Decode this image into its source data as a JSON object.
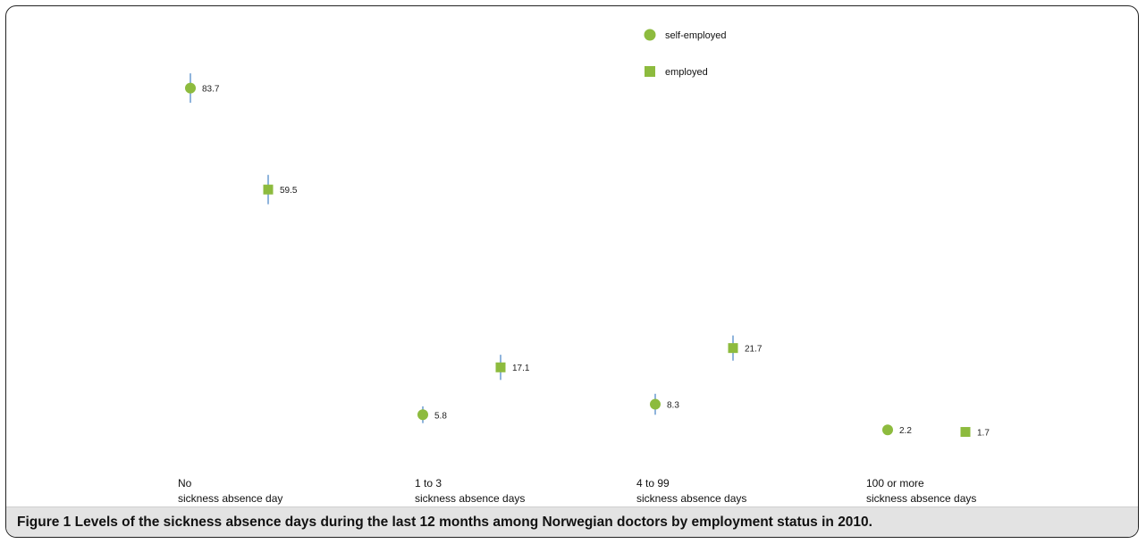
{
  "figure": {
    "label": "Figure 1",
    "caption": "Levels of the sickness absence days during the last 12 months among Norwegian doctors by employment status in 2010."
  },
  "colors": {
    "marker": "#8dbb3e",
    "error_bar": "#8fb4dc"
  },
  "chart_data": {
    "type": "scatter",
    "title": "",
    "xlabel": "",
    "ylabel": "",
    "categories": [
      [
        "No",
        "sickness absence day"
      ],
      [
        "1 to 3",
        "sickness absence days"
      ],
      [
        "4 to 99",
        "sickness absence days"
      ],
      [
        "100 or more",
        "sickness absence days"
      ]
    ],
    "series": [
      {
        "name": "self-employed",
        "marker": "circle",
        "values": [
          83.7,
          5.8,
          8.3,
          2.2
        ],
        "error": [
          3.5,
          2.0,
          2.5,
          1.0
        ]
      },
      {
        "name": "employed",
        "marker": "square",
        "values": [
          59.5,
          17.1,
          21.7,
          1.7
        ],
        "error": [
          3.5,
          3.0,
          3.0,
          0.0
        ]
      }
    ],
    "ylim": [
      -5,
      90
    ],
    "grid": false,
    "legend": "top-center"
  }
}
